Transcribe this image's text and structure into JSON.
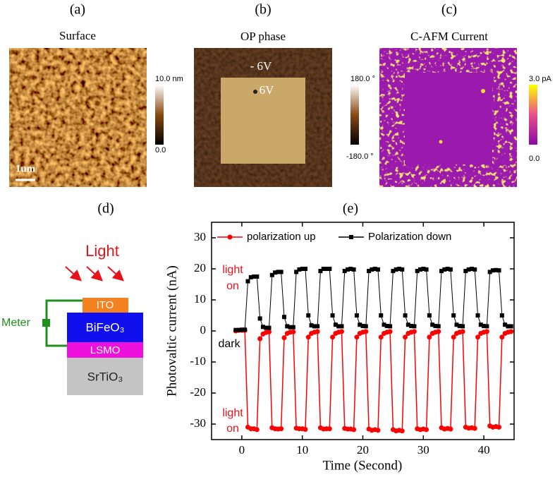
{
  "panels": [
    {
      "label": "(a)",
      "title": "Surface",
      "colorbar": {
        "max": "10.0 nm",
        "min": "0.0"
      },
      "scale_bar": "1um"
    },
    {
      "label": "(b)",
      "title": "OP phase",
      "colorbar": {
        "max": "180.0 °",
        "min": "-180.0 °"
      },
      "annotations": [
        "- 6V",
        "6V"
      ]
    },
    {
      "label": "(c)",
      "title": "C-AFM Current",
      "colorbar": {
        "max": "3.0 pA",
        "min": "0.0"
      }
    }
  ],
  "diagram": {
    "label": "(d)",
    "light": "Light",
    "meter": "Meter",
    "layers": [
      "ITO",
      "BiFeO₃",
      "LSMO",
      "SrTiO₃"
    ]
  },
  "chart_data": {
    "type": "line",
    "panel_label": "(e)",
    "x_label": "Time (Second)",
    "y_label": "Photovaltic current (nA)",
    "annotations": [
      "light",
      "on",
      "dark",
      "light",
      "on"
    ],
    "xlim": [
      -5,
      45
    ],
    "ylim": [
      -35,
      35
    ],
    "xticks": [
      0,
      10,
      20,
      30,
      40
    ],
    "yticks": [
      -30,
      -20,
      -10,
      0,
      10,
      20,
      30
    ],
    "x": [
      -1,
      -0.5,
      0,
      0.5,
      1,
      1.5,
      2,
      2.5,
      3,
      3.5,
      4,
      4.5,
      5,
      5.5,
      6,
      6.5,
      7,
      7.5,
      8,
      8.5,
      9,
      9.5,
      10,
      10.5,
      11,
      11.5,
      12,
      12.5,
      13,
      13.5,
      14,
      14.5,
      15,
      15.5,
      16,
      16.5,
      17,
      17.5,
      18,
      18.5,
      19,
      19.5,
      20,
      20.5,
      21,
      21.5,
      22,
      22.5,
      23,
      23.5,
      24,
      24.5,
      25,
      25.5,
      26,
      26.5,
      27,
      27.5,
      28,
      28.5,
      29,
      29.5,
      30,
      30.5,
      31,
      31.5,
      32,
      32.5,
      33,
      33.5,
      34,
      34.5,
      35,
      35.5,
      36,
      36.5,
      37,
      37.5,
      38,
      38.5,
      39,
      39.5,
      40,
      40.5,
      41,
      41.5,
      42,
      42.5,
      43,
      43.5,
      44,
      44.5
    ],
    "series": [
      {
        "name": "polarization up",
        "color": "#ff0000",
        "marker": "circle",
        "values": [
          0,
          0.2,
          0.2,
          0.2,
          -31,
          -31.5,
          -31.5,
          -31.8,
          -2.5,
          -1,
          -0.5,
          -0.3,
          -31.2,
          -31.5,
          -31.6,
          -31.5,
          -2.2,
          -0.8,
          -0.4,
          -0.3,
          -31.3,
          -31.5,
          -31.5,
          -31.7,
          -2,
          -0.8,
          -0.4,
          -0.2,
          -31.2,
          -31.6,
          -31.5,
          -31.5,
          -2,
          -0.8,
          -0.4,
          -0.2,
          -31.4,
          -31.6,
          -31.6,
          -31.8,
          -2,
          -0.8,
          -0.4,
          -0.2,
          -31.6,
          -32,
          -31.8,
          -32,
          -2,
          -0.8,
          -0.4,
          -0.2,
          -31.8,
          -32.2,
          -32,
          -32.2,
          -2,
          -0.8,
          -0.4,
          -0.2,
          -31.5,
          -31.8,
          -31.6,
          -31.8,
          -2,
          -0.8,
          -0.4,
          -0.2,
          -31.2,
          -31.6,
          -31.4,
          -31.6,
          -2,
          -0.8,
          -0.4,
          -0.2,
          -31,
          -31.3,
          -31.2,
          -31.4,
          -2,
          -0.8,
          -0.4,
          -0.2,
          -30.6,
          -31,
          -30.8,
          -31,
          -2,
          -0.8,
          -0.4,
          -0.2
        ]
      },
      {
        "name": "Polarization down",
        "color": "#000000",
        "marker": "square",
        "values": [
          0.3,
          0.3,
          0.4,
          0.4,
          16,
          17.3,
          17.5,
          17.5,
          4,
          1.3,
          1,
          1,
          18,
          18.8,
          19,
          19,
          4.5,
          1.5,
          1.2,
          1.2,
          19,
          19.8,
          20,
          20,
          5,
          1.8,
          1.5,
          1.5,
          19.3,
          20,
          20,
          20,
          5,
          2,
          1.5,
          1.5,
          19.3,
          19.8,
          20,
          19.8,
          5,
          2,
          1.6,
          1.5,
          19.3,
          19.8,
          20,
          19.8,
          5,
          2,
          1.6,
          1.5,
          19.3,
          19.8,
          20,
          19.8,
          5,
          2,
          1.6,
          1.5,
          19.3,
          19.8,
          20,
          19.8,
          5,
          2,
          1.6,
          1.5,
          19.3,
          19.8,
          20,
          19.8,
          5,
          2,
          1.6,
          1.5,
          19.3,
          19.8,
          20,
          19.8,
          5,
          2,
          1.6,
          1.5,
          19,
          19.5,
          19.6,
          19.5,
          5,
          2,
          1.5,
          1.5
        ]
      }
    ]
  }
}
